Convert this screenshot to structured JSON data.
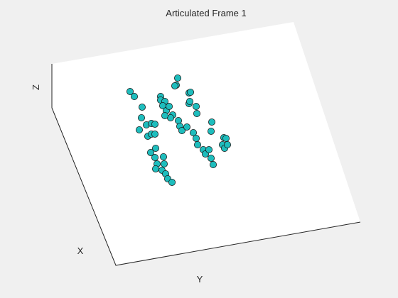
{
  "chart_data": {
    "type": "scatter",
    "projection": "3d",
    "title": "Articulated Frame 1",
    "xlabel": "X",
    "ylabel": "Y",
    "zlabel": "Z",
    "grid": false,
    "ticks": false,
    "marker": {
      "shape": "circle",
      "face_color": "#1ebdbd",
      "edge_color": "#1a1a1a"
    },
    "colors": {
      "figure_background": "#f0f0f0",
      "axes_background": "#ffffff",
      "axis_line": "#262626"
    },
    "points_note": "screen-projected positions of the 3D markers as they appear in the view",
    "points": [
      [
        183,
        129
      ],
      [
        189,
        136
      ],
      [
        200,
        151
      ],
      [
        199,
        166
      ],
      [
        206,
        176
      ],
      [
        213,
        174
      ],
      [
        218,
        175
      ],
      [
        196,
        183
      ],
      [
        208,
        192
      ],
      [
        213,
        189
      ],
      [
        218,
        189
      ],
      [
        219,
        209
      ],
      [
        212,
        215
      ],
      [
        218,
        222
      ],
      [
        221,
        231
      ],
      [
        219,
        238
      ],
      [
        230,
        221
      ],
      [
        231,
        231
      ],
      [
        228,
        240
      ],
      [
        233,
        245
      ],
      [
        236,
        252
      ],
      [
        242,
        257
      ],
      [
        250,
        110
      ],
      [
        248,
        120
      ],
      [
        246,
        121
      ],
      [
        226,
        136
      ],
      [
        226,
        141
      ],
      [
        232,
        143
      ],
      [
        229,
        149
      ],
      [
        234,
        156
      ],
      [
        238,
        150
      ],
      [
        243,
        162
      ],
      [
        240,
        166
      ],
      [
        232,
        163
      ],
      [
        251,
        170
      ],
      [
        253,
        178
      ],
      [
        256,
        184
      ],
      [
        263,
        179
      ],
      [
        266,
        131
      ],
      [
        268,
        130
      ],
      [
        266,
        146
      ],
      [
        267,
        143
      ],
      [
        276,
        150
      ],
      [
        277,
        160
      ],
      [
        298,
        172
      ],
      [
        297,
        185
      ],
      [
        272,
        187
      ],
      [
        276,
        195
      ],
      [
        278,
        204
      ],
      [
        286,
        211
      ],
      [
        289,
        217
      ],
      [
        294,
        211
      ],
      [
        297,
        223
      ],
      [
        300,
        232
      ],
      [
        315,
        194
      ],
      [
        318,
        195
      ],
      [
        313,
        204
      ],
      [
        316,
        209
      ],
      [
        320,
        204
      ]
    ]
  }
}
